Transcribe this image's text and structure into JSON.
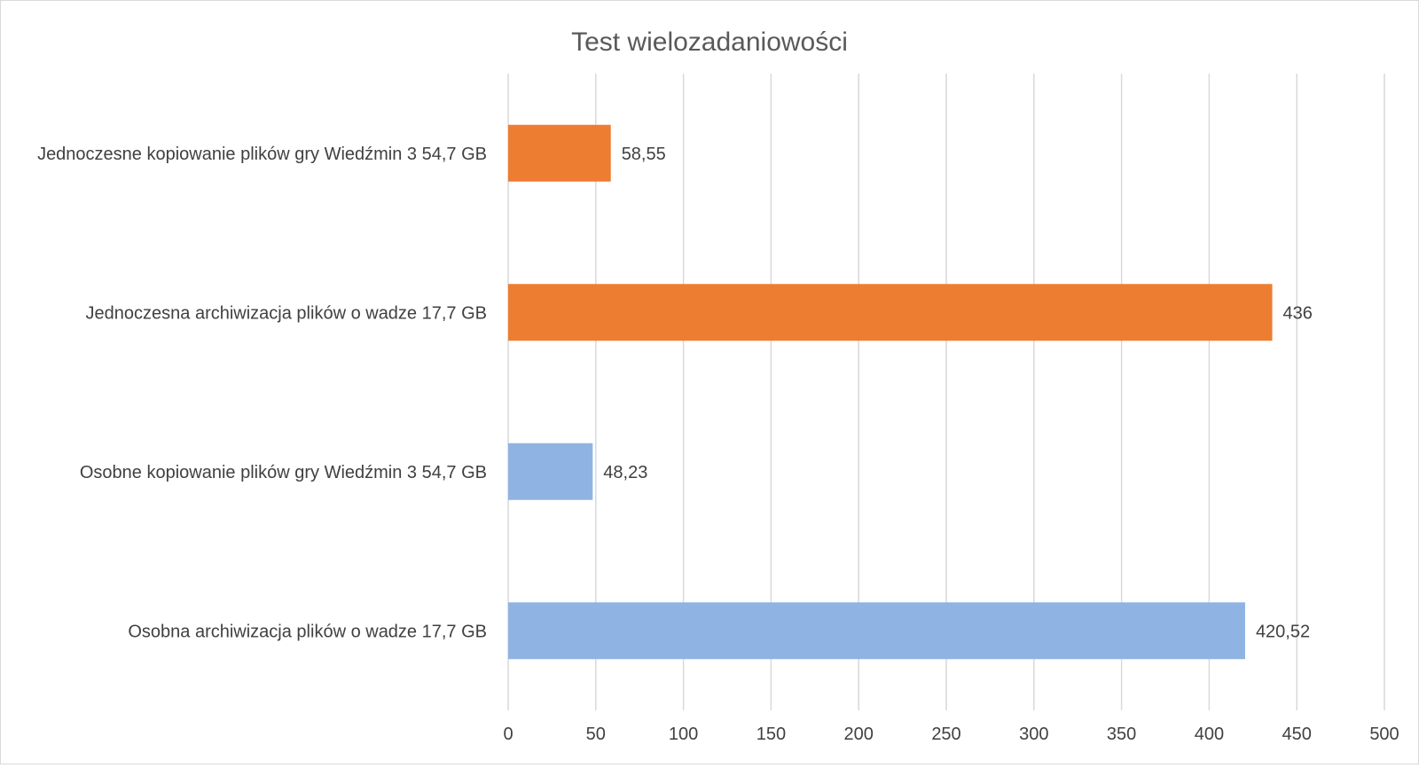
{
  "chart_data": {
    "type": "bar",
    "orientation": "horizontal",
    "title": "Test wielozadaniowości",
    "xlabel": "",
    "ylabel": "",
    "xlim": [
      0,
      500
    ],
    "x_ticks": [
      0,
      50,
      100,
      150,
      200,
      250,
      300,
      350,
      400,
      450,
      500
    ],
    "grid": "vertical",
    "legend": "none",
    "categories": [
      "Jednoczesne kopiowanie plików gry Wiedźmin 3 54,7 GB",
      "Jednoczesna archiwizacja plików o wadze 17,7 GB",
      "Osobne kopiowanie plików gry Wiedźmin 3 54,7 GB",
      "Osobna archiwizacja plików o wadze 17,7 GB"
    ],
    "values": [
      58.55,
      436,
      48.23,
      420.52
    ],
    "value_labels": [
      "58,55",
      "436",
      "48,23",
      "420,52"
    ],
    "bar_colors": [
      "#ED7D31",
      "#ED7D31",
      "#8FB3E3",
      "#8FB3E3"
    ]
  },
  "colors": {
    "gridline": "#d9d9d9",
    "title_text": "#595959",
    "label_text": "#404040"
  }
}
